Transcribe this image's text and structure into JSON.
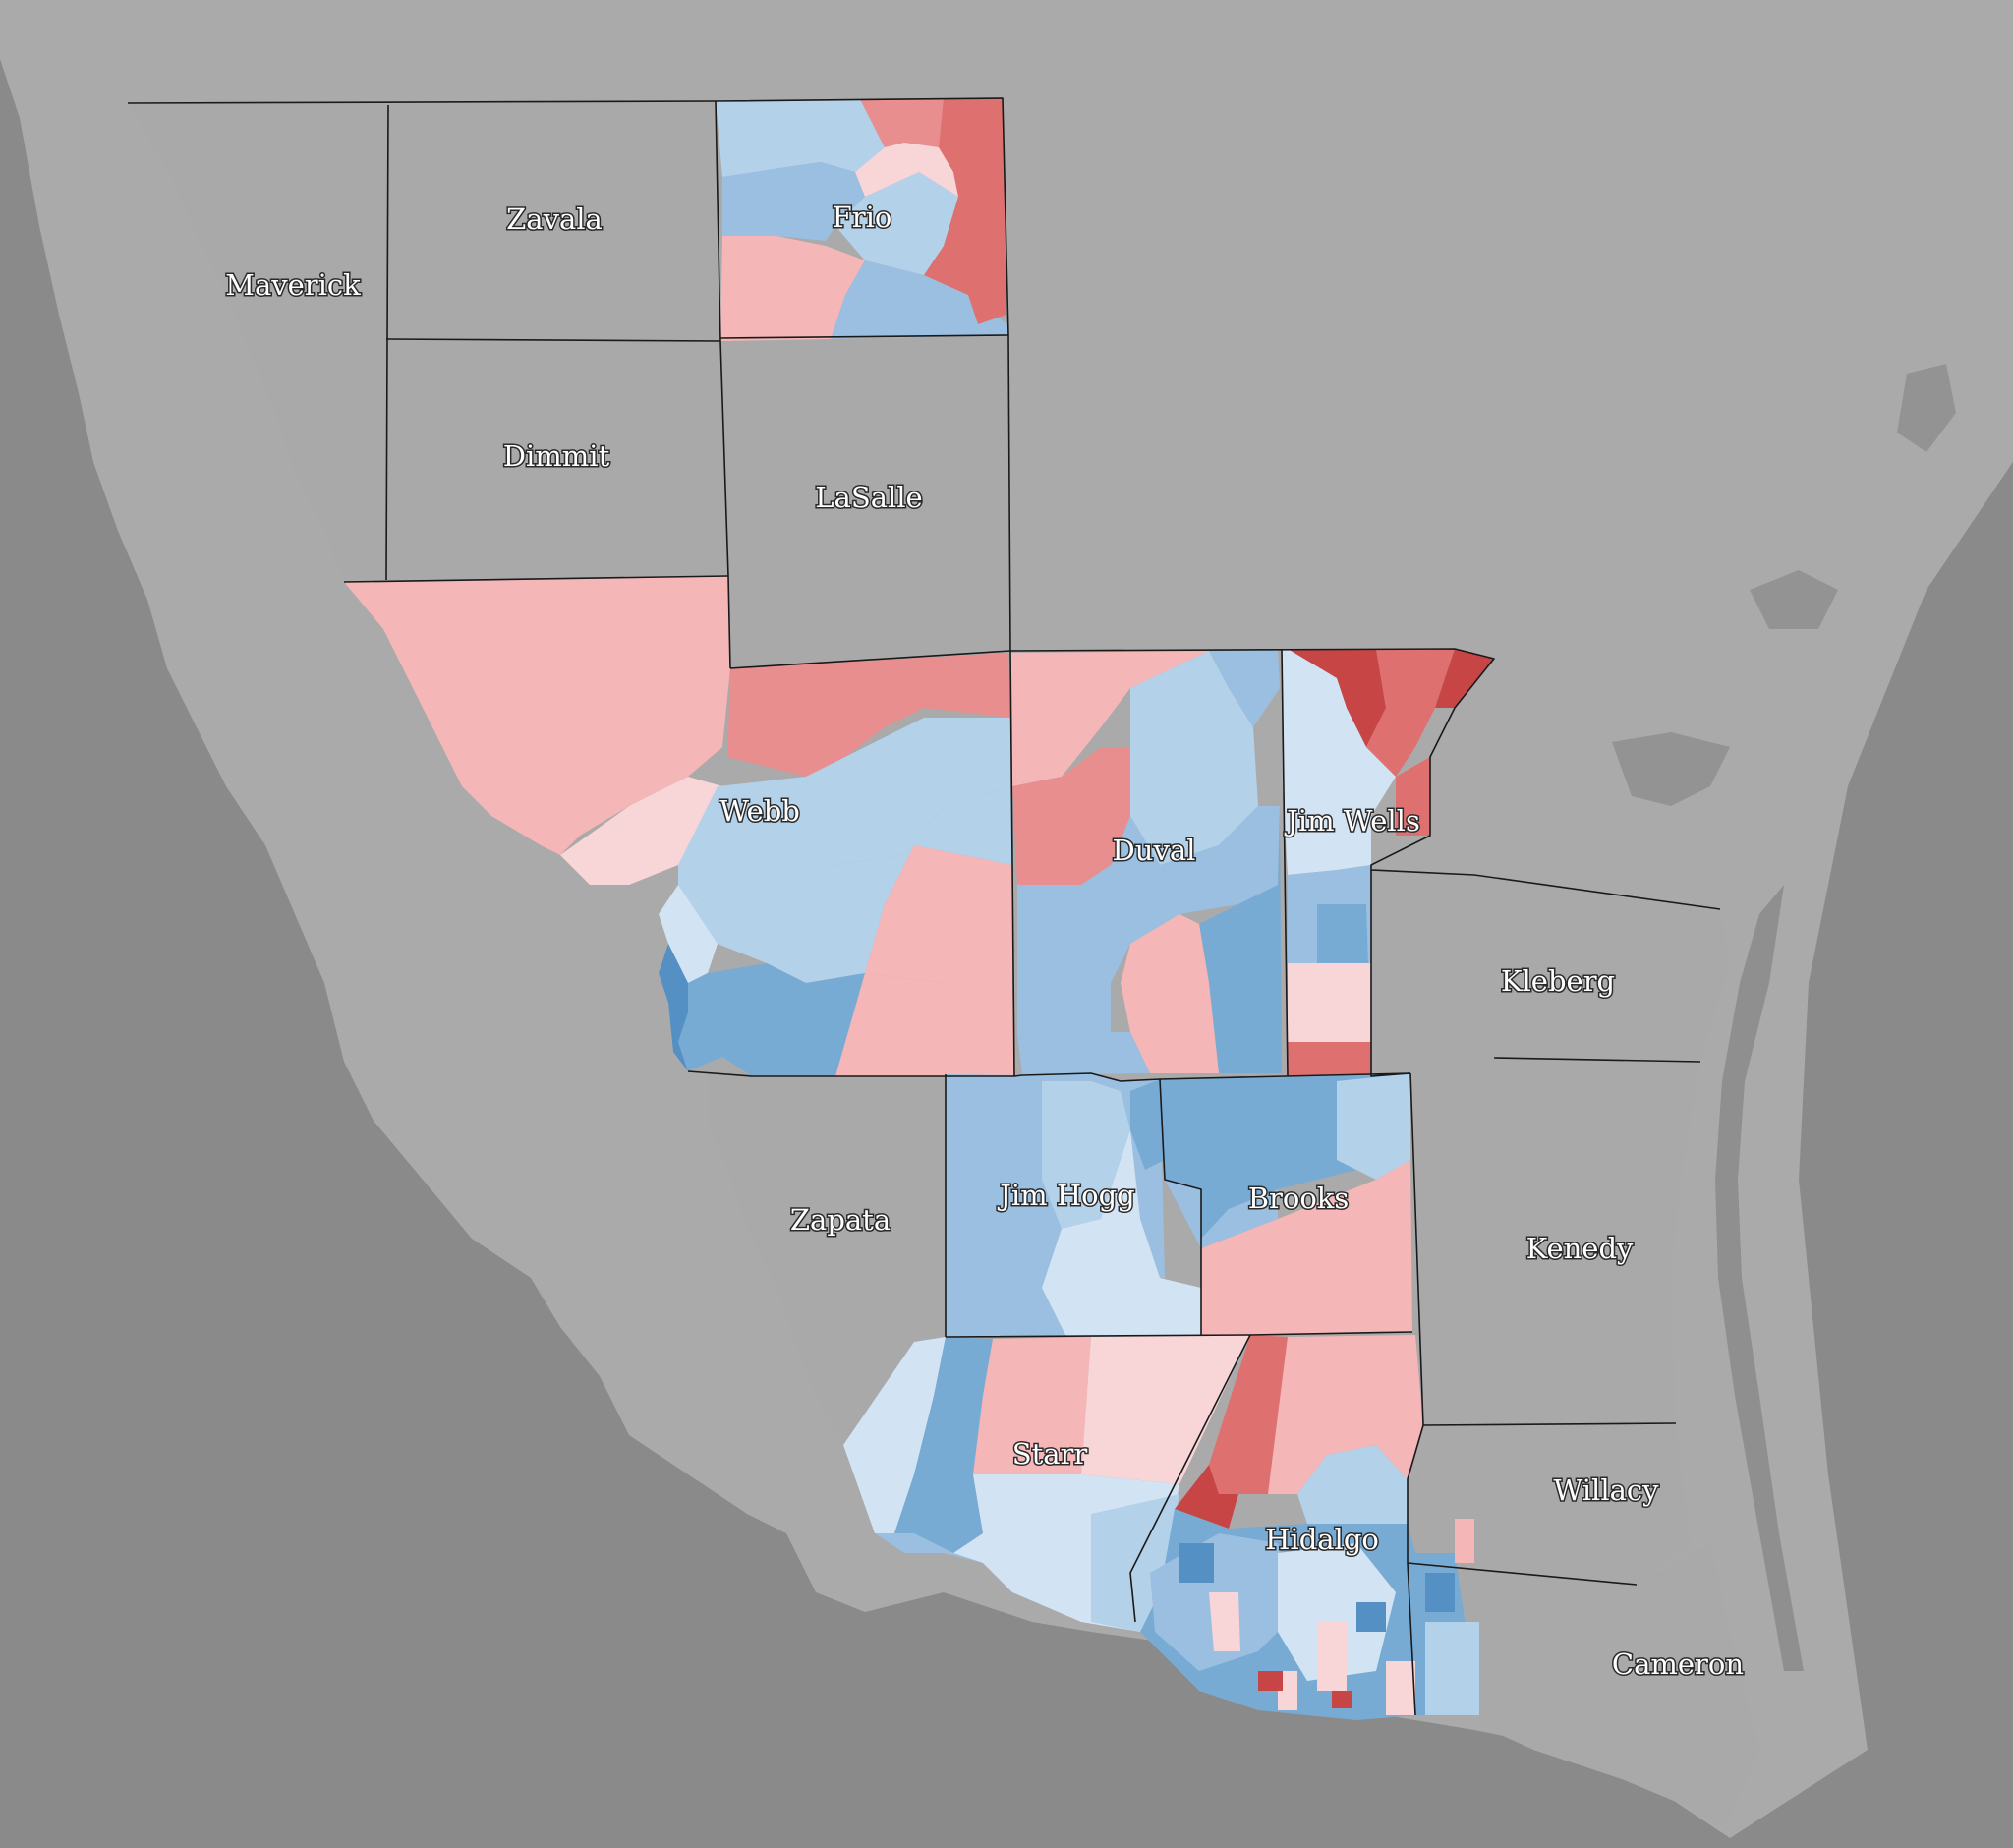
{
  "colors": {
    "ocean": "#8a8a8a",
    "land": "#aaaaaa",
    "county_no_data": "#a9a9a9",
    "border": "#1a1a1a",
    "label_fill": "#ffffff",
    "label_stroke": "#2a2a2a",
    "dem_1": "#d2e4f3",
    "dem_2": "#b4d1ea",
    "dem_3": "#9abfe1",
    "dem_4": "#78abd4",
    "dem_5": "#5590c4",
    "rep_1": "#f8d5d7",
    "rep_2": "#f4b6b6",
    "rep_3": "#e88e8e",
    "rep_4": "#df7070",
    "rep_5": "#c84545"
  },
  "counties": {
    "maverick": "Maverick",
    "zavala": "Zavala",
    "frio": "Frio",
    "dimmit": "Dimmit",
    "lasalle": "LaSalle",
    "webb": "Webb",
    "duval": "Duval",
    "jim_wells": "Jim Wells",
    "kleberg": "Kleberg",
    "zapata": "Zapata",
    "jim_hogg": "Jim Hogg",
    "brooks": "Brooks",
    "kenedy": "Kenedy",
    "starr": "Starr",
    "willacy": "Willacy",
    "hidalgo": "Hidalgo",
    "cameron": "Cameron"
  }
}
